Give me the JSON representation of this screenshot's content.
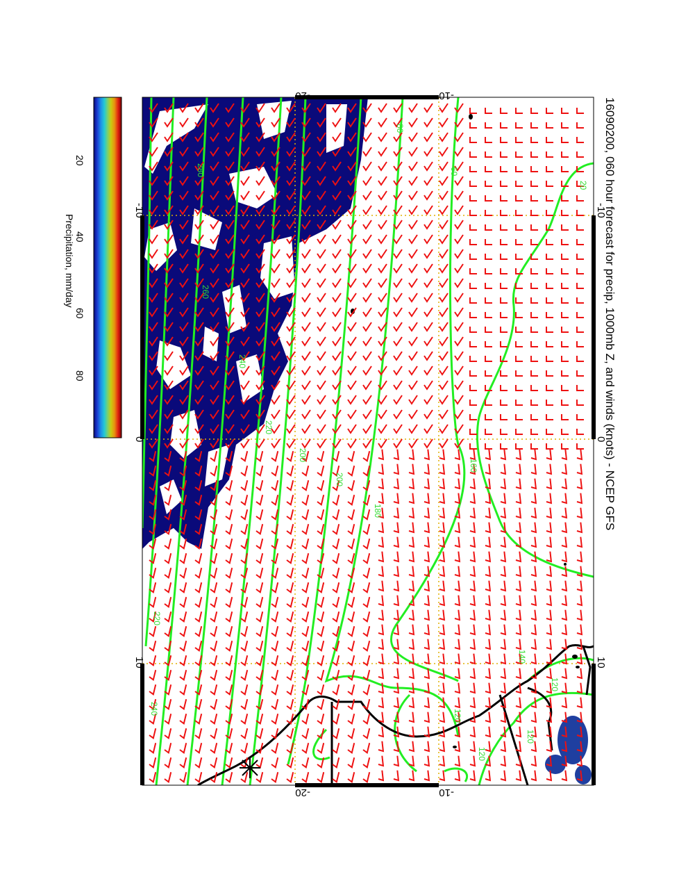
{
  "title": "16090200, 060 hour forecast for precip, 1000mb Z, and winds (knots) - NCEP GFS",
  "colorbar": {
    "label": "Precipitation, mm/day",
    "ticks": [
      "20",
      "40",
      "60",
      "80"
    ],
    "colors": [
      "#0a0a78",
      "#1a3ad0",
      "#1f8ce8",
      "#22c8d8",
      "#7ad070",
      "#c8cc10",
      "#e89010",
      "#e02010",
      "#780000"
    ]
  },
  "axes": {
    "top_ticks": [
      "-20",
      "-10"
    ],
    "bottom_ticks": [
      "-20",
      "-10"
    ],
    "left_ticks": [
      "-10",
      "0",
      "10"
    ],
    "right_ticks": [
      "-10",
      "0",
      "10"
    ]
  },
  "contour_labels": [
    "80",
    "60",
    "280",
    "260",
    "240",
    "220",
    "200",
    "200",
    "180",
    "160",
    "140",
    "120",
    "120",
    "120",
    "240",
    "220",
    "20",
    "120"
  ],
  "colors": {
    "precip": "#0a0a7a",
    "contour": "#22ee22",
    "wind_barb": "#ee1111",
    "coastline": "#000000",
    "grid": "#e0b000"
  }
}
